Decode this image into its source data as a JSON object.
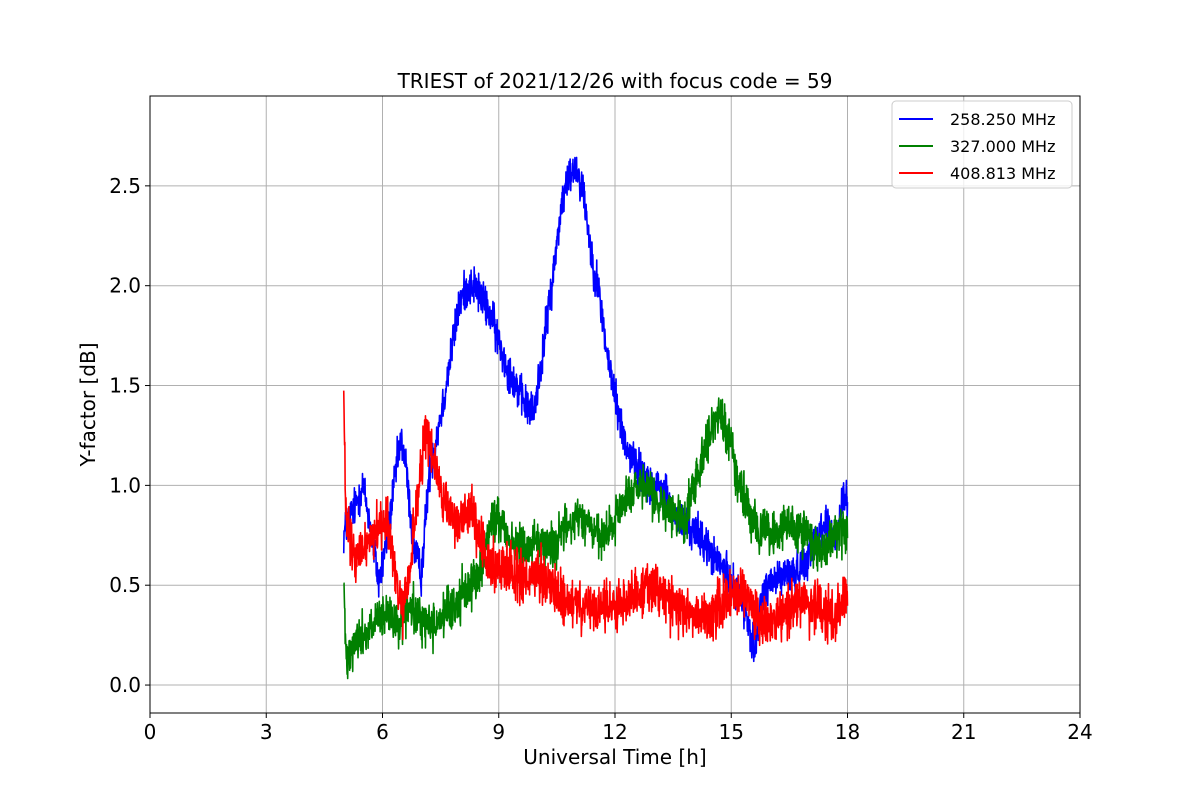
{
  "chart_data": {
    "type": "line",
    "title": "TRIEST of 2021/12/26 with focus code = 59",
    "xlabel": "Universal Time [h]",
    "ylabel": "Y-factor [dB]",
    "xlim": [
      0,
      24
    ],
    "ylim": [
      -0.14,
      2.95
    ],
    "xticks": [
      0,
      3,
      6,
      9,
      12,
      15,
      18,
      21,
      24
    ],
    "xtick_labels": [
      "0",
      "3",
      "6",
      "9",
      "12",
      "15",
      "18",
      "21",
      "24"
    ],
    "yticks": [
      0.0,
      0.5,
      1.0,
      1.5,
      2.0,
      2.5
    ],
    "ytick_labels": [
      "0.0",
      "0.5",
      "1.0",
      "1.5",
      "2.0",
      "2.5"
    ],
    "grid": true,
    "legend_position": "top-right",
    "series": [
      {
        "name": "258.250 MHz",
        "color": "#0000ff",
        "noise": 0.07,
        "x": [
          5.0,
          5.1,
          5.3,
          5.5,
          5.7,
          5.9,
          6.0,
          6.2,
          6.4,
          6.5,
          6.6,
          6.8,
          7.0,
          7.2,
          7.4,
          7.6,
          7.8,
          8.0,
          8.2,
          8.4,
          8.6,
          8.8,
          9.0,
          9.2,
          9.5,
          9.7,
          9.9,
          10.1,
          10.4,
          10.6,
          10.8,
          11.0,
          11.2,
          11.4,
          11.6,
          11.8,
          12.0,
          12.2,
          12.4,
          12.6,
          12.8,
          13.0,
          13.3,
          13.5,
          13.8,
          14.0,
          14.3,
          14.5,
          14.8,
          15.0,
          15.2,
          15.4,
          15.6,
          15.8,
          16.0,
          16.3,
          16.6,
          16.9,
          17.2,
          17.5,
          17.7,
          17.9,
          18.0
        ],
        "y": [
          0.75,
          0.82,
          0.9,
          1.0,
          0.78,
          0.52,
          0.6,
          0.85,
          1.15,
          1.22,
          1.1,
          0.7,
          0.55,
          1.05,
          1.25,
          1.45,
          1.7,
          1.92,
          2.0,
          2.0,
          1.92,
          1.85,
          1.72,
          1.6,
          1.48,
          1.4,
          1.36,
          1.62,
          2.05,
          2.38,
          2.55,
          2.6,
          2.45,
          2.15,
          1.95,
          1.65,
          1.45,
          1.25,
          1.15,
          1.08,
          1.05,
          1.0,
          0.95,
          0.85,
          0.8,
          0.78,
          0.72,
          0.65,
          0.58,
          0.5,
          0.48,
          0.35,
          0.15,
          0.45,
          0.5,
          0.55,
          0.55,
          0.62,
          0.75,
          0.82,
          0.7,
          0.95,
          0.9
        ]
      },
      {
        "name": "327.000 MHz",
        "color": "#008000",
        "noise": 0.08,
        "x": [
          5.0,
          5.05,
          5.2,
          5.5,
          5.8,
          6.1,
          6.4,
          6.7,
          7.0,
          7.3,
          7.6,
          7.9,
          8.2,
          8.5,
          8.8,
          9.0,
          9.3,
          9.6,
          9.9,
          10.2,
          10.5,
          10.8,
          11.1,
          11.4,
          11.7,
          12.0,
          12.3,
          12.6,
          12.9,
          13.2,
          13.5,
          13.8,
          14.1,
          14.4,
          14.7,
          15.0,
          15.2,
          15.5,
          15.8,
          16.1,
          16.4,
          16.7,
          17.0,
          17.3,
          17.6,
          17.9,
          18.0
        ],
        "y": [
          0.55,
          0.15,
          0.2,
          0.25,
          0.3,
          0.35,
          0.3,
          0.38,
          0.33,
          0.3,
          0.35,
          0.4,
          0.5,
          0.55,
          0.8,
          0.85,
          0.72,
          0.68,
          0.72,
          0.7,
          0.72,
          0.8,
          0.85,
          0.78,
          0.72,
          0.82,
          0.95,
          0.98,
          0.96,
          0.9,
          0.85,
          0.82,
          1.05,
          1.25,
          1.35,
          1.22,
          1.0,
          0.82,
          0.78,
          0.75,
          0.8,
          0.78,
          0.72,
          0.68,
          0.72,
          0.78,
          0.75
        ]
      },
      {
        "name": "408.813 MHz",
        "color": "#ff0000",
        "noise": 0.09,
        "x": [
          5.0,
          5.05,
          5.15,
          5.3,
          5.5,
          5.7,
          5.9,
          6.1,
          6.3,
          6.5,
          6.7,
          6.9,
          7.1,
          7.3,
          7.5,
          7.7,
          7.9,
          8.1,
          8.3,
          8.5,
          8.7,
          8.9,
          9.2,
          9.5,
          9.8,
          10.1,
          10.4,
          10.7,
          11.0,
          11.3,
          11.6,
          11.9,
          12.2,
          12.5,
          12.8,
          13.1,
          13.4,
          13.7,
          14.0,
          14.3,
          14.6,
          14.9,
          15.2,
          15.5,
          15.8,
          16.1,
          16.4,
          16.7,
          17.0,
          17.3,
          17.6,
          17.9,
          18.0
        ],
        "y": [
          1.45,
          0.85,
          0.72,
          0.62,
          0.68,
          0.75,
          0.78,
          0.85,
          0.6,
          0.35,
          0.55,
          0.95,
          1.25,
          1.15,
          0.98,
          0.85,
          0.8,
          0.85,
          0.9,
          0.72,
          0.62,
          0.58,
          0.6,
          0.55,
          0.52,
          0.55,
          0.48,
          0.42,
          0.4,
          0.38,
          0.38,
          0.4,
          0.42,
          0.45,
          0.5,
          0.48,
          0.42,
          0.38,
          0.35,
          0.35,
          0.38,
          0.42,
          0.48,
          0.4,
          0.3,
          0.32,
          0.38,
          0.42,
          0.4,
          0.38,
          0.35,
          0.42,
          0.45
        ]
      }
    ]
  }
}
